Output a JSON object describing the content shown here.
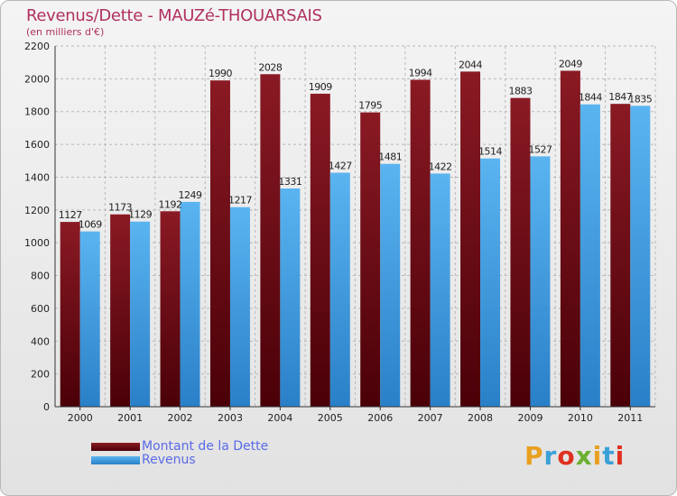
{
  "page": {
    "title": "Revenus/Dette - MAUZé-THOUARSAIS",
    "subtitle": "(en milliers d'€)"
  },
  "logo": {
    "text": "Proxiti",
    "letter_colors": [
      "#e8a020",
      "#3aa0d8",
      "#e03020",
      "#6ab030",
      "#e8a020",
      "#3aa0d8",
      "#e03020"
    ]
  },
  "colors": {
    "dette": "#6b0a12",
    "revenus": "#3a9ee8",
    "grid": "#b8b8b8",
    "title": "#b03060",
    "legend_text": "#5a6ae8"
  },
  "chart_data": {
    "type": "bar",
    "title": "Revenus/Dette - MAUZé-THOUARSAIS",
    "subtitle": "(en milliers d'€)",
    "categories": [
      "2000",
      "2001",
      "2002",
      "2003",
      "2004",
      "2005",
      "2006",
      "2007",
      "2008",
      "2009",
      "2010",
      "2011"
    ],
    "series": [
      {
        "name": "Montant de la Dette",
        "values": [
          1127,
          1173,
          1192,
          1990,
          2028,
          1909,
          1795,
          1994,
          2044,
          1883,
          2049,
          1847
        ]
      },
      {
        "name": "Revenus",
        "values": [
          1069,
          1129,
          1249,
          1217,
          1331,
          1427,
          1481,
          1422,
          1514,
          1527,
          1844,
          1835
        ]
      }
    ],
    "ylim": [
      0,
      2200
    ],
    "yticks": [
      0,
      200,
      400,
      600,
      800,
      1000,
      1200,
      1400,
      1600,
      1800,
      2000,
      2200
    ],
    "grid": true,
    "legend_position": "bottom-left"
  }
}
